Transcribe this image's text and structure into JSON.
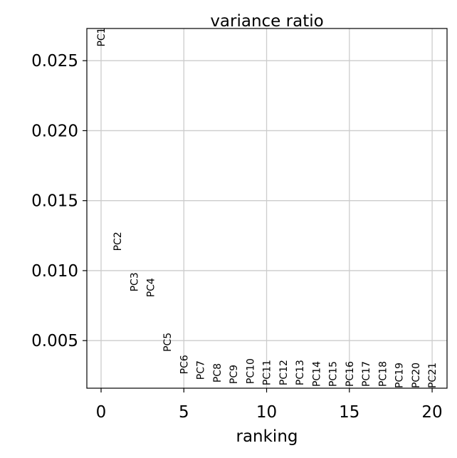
{
  "chart_data": {
    "type": "scatter",
    "title": "variance ratio",
    "x_label": "ranking",
    "categories": [
      "PC1",
      "PC2",
      "PC3",
      "PC4",
      "PC5",
      "PC6",
      "PC7",
      "PC8",
      "PC9",
      "PC10",
      "PC11",
      "PC12",
      "PC13",
      "PC14",
      "PC15",
      "PC16",
      "PC17",
      "PC18",
      "PC19",
      "PC20",
      "PC21"
    ],
    "x": [
      0,
      1,
      2,
      3,
      4,
      5,
      6,
      7,
      8,
      9,
      10,
      11,
      12,
      13,
      14,
      15,
      16,
      17,
      18,
      19,
      20
    ],
    "values": [
      0.026,
      0.0114,
      0.0085,
      0.0081,
      0.0042,
      0.0026,
      0.0022,
      0.002,
      0.0019,
      0.0019,
      0.0018,
      0.0018,
      0.0018,
      0.0017,
      0.0017,
      0.0017,
      0.0017,
      0.0017,
      0.0016,
      0.0016,
      0.0016
    ],
    "xlim": [
      -0.86,
      20.9
    ],
    "ylim": [
      0.0016,
      0.0273
    ],
    "xticks": [
      0,
      5,
      10,
      15,
      20
    ],
    "yticks": [
      0.005,
      {
        "value": 0.01,
        "label": "0.010"
      },
      0.015,
      {
        "value": 0.02,
        "label": "0.020"
      },
      0.025
    ],
    "grid": true
  }
}
